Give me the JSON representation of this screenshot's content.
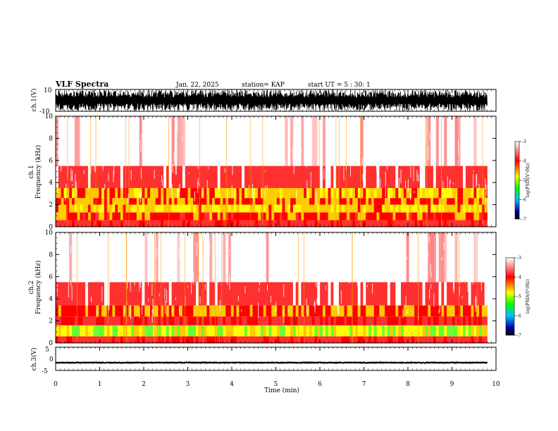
{
  "header": {
    "title": "VLF Spectra",
    "date": "Jan. 22, 2025",
    "station": "station= KAP",
    "start": "start  UT =  5 : 30: 1"
  },
  "colorbar": {
    "ticks": [
      "-3",
      "-4",
      "-5",
      "-6",
      "-7"
    ],
    "label": "log(PSD)(V²/Hz)",
    "colors": [
      "#ffffff",
      "#ff0000",
      "#ffff00",
      "#00ff00",
      "#00c0ff",
      "#0000aa",
      "#000000"
    ]
  },
  "chart_data": [
    {
      "type": "line",
      "panel": "ch1-waveform",
      "ylabel": "ch.1(V)",
      "ylim": [
        -10,
        10
      ],
      "y_ticks": [
        "10",
        "-10"
      ],
      "time_range_min": [
        0,
        9.8
      ],
      "description_values": {
        "typical_min": -9.5,
        "typical_max": 9.5
      },
      "color": "#000000"
    },
    {
      "type": "heatmap",
      "panel": "ch1-spectrogram",
      "ylabel": "ch.1\nFrequency (kHz)",
      "ylim": [
        0,
        10
      ],
      "y_ticks": [
        "10",
        "8",
        "6",
        "4",
        "2",
        "0"
      ],
      "time_range_min": [
        0,
        9.8
      ],
      "bands": [
        {
          "from_khz": 0,
          "to_khz": 0.6,
          "level": -3.8
        },
        {
          "from_khz": 0.6,
          "to_khz": 1.3,
          "level": -4.1
        },
        {
          "from_khz": 1.3,
          "to_khz": 2.0,
          "level": -4.4
        },
        {
          "from_khz": 2.0,
          "to_khz": 2.6,
          "level": -4.2
        },
        {
          "from_khz": 2.6,
          "to_khz": 3.5,
          "level": -4.3
        },
        {
          "from_khz": 3.5,
          "to_khz": 5.5,
          "level": -3.6
        },
        {
          "from_khz": 5.5,
          "to_khz": 10,
          "level": -3.2
        }
      ]
    },
    {
      "type": "heatmap",
      "panel": "ch2-spectrogram",
      "ylabel": "ch.2\nFrequency (kHz)",
      "ylim": [
        0,
        10
      ],
      "y_ticks": [
        "10",
        "8",
        "6",
        "4",
        "2",
        "0"
      ],
      "time_range_min": [
        0,
        9.8
      ],
      "bands": [
        {
          "from_khz": 0,
          "to_khz": 0.6,
          "level": -3.8
        },
        {
          "from_khz": 0.6,
          "to_khz": 1.6,
          "level": -4.6
        },
        {
          "from_khz": 1.6,
          "to_khz": 2.4,
          "level": -3.9
        },
        {
          "from_khz": 2.4,
          "to_khz": 3.4,
          "level": -4.2
        },
        {
          "from_khz": 3.4,
          "to_khz": 5.5,
          "level": -3.6
        },
        {
          "from_khz": 5.5,
          "to_khz": 10,
          "level": -3.2
        }
      ]
    },
    {
      "type": "line",
      "panel": "ch3-waveform",
      "ylabel": "ch.3(V)",
      "ylim": [
        -5,
        5
      ],
      "y_ticks": [
        "5",
        "0",
        "-5"
      ],
      "time_range_min": [
        0,
        9.8
      ],
      "description_values": {
        "typical_min": -2.1,
        "typical_max": -1.2
      },
      "color": "#000000"
    }
  ],
  "x_axis": {
    "label": "Time  (min)",
    "ticks": [
      "0",
      "1",
      "2",
      "3",
      "4",
      "5",
      "6",
      "7",
      "8",
      "9",
      "10"
    ],
    "range": [
      0,
      10
    ]
  }
}
